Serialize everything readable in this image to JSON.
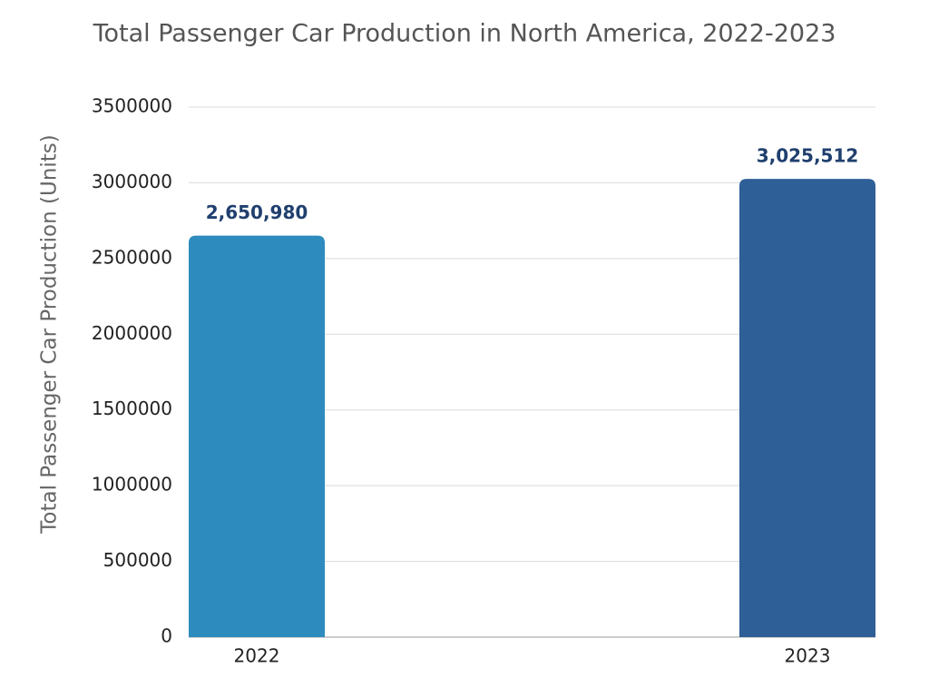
{
  "chart_data": {
    "type": "bar",
    "title": "Total Passenger Car Production in North America, 2022-2023",
    "y_label": "Total Passenger Car Production (Units)",
    "categories": [
      "2022",
      "2023"
    ],
    "values": [
      2650980,
      3025512
    ],
    "value_labels": [
      "2,650,980",
      "3,025,512"
    ],
    "colors": [
      "#2e8bbd",
      "#2e5f97"
    ],
    "ylim": [
      0,
      3500000
    ],
    "yticks": [
      0,
      500000,
      1000000,
      1500000,
      2000000,
      2500000,
      3000000,
      3500000
    ],
    "grid": true
  }
}
